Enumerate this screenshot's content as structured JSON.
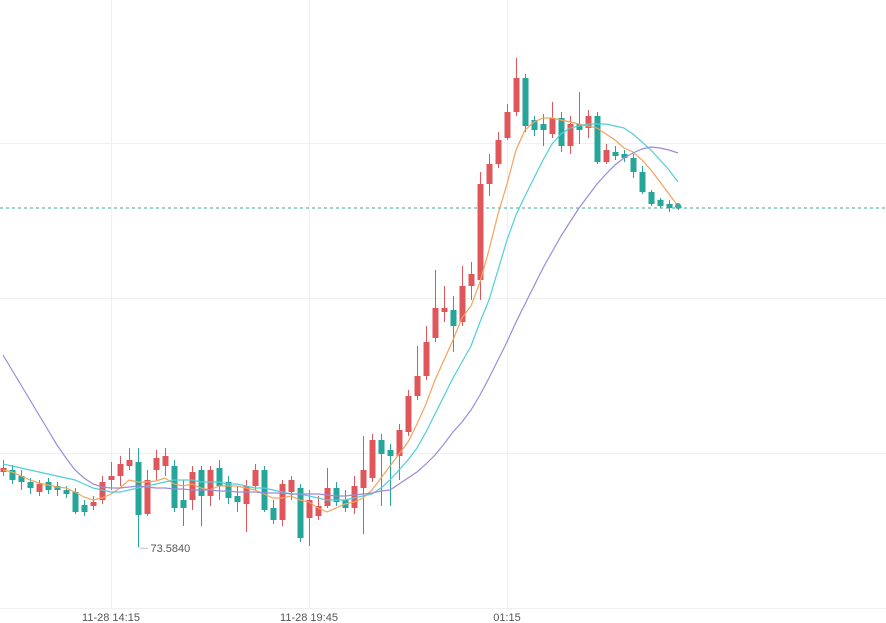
{
  "chart_data": {
    "type": "candlestick",
    "categories": [
      null,
      null,
      null,
      null,
      null,
      null,
      null,
      null,
      null,
      null,
      null,
      null,
      "11-28 14:15",
      null,
      null,
      null,
      null,
      null,
      null,
      null,
      null,
      null,
      null,
      null,
      null,
      null,
      null,
      null,
      null,
      null,
      null,
      null,
      null,
      null,
      "11-28 19:45",
      null,
      null,
      null,
      null,
      null,
      null,
      null,
      null,
      null,
      null,
      null,
      null,
      null,
      null,
      null,
      null,
      null,
      null,
      null,
      null,
      null,
      "01:15",
      null,
      null,
      null,
      null,
      null,
      null,
      null,
      null,
      null,
      null,
      null,
      null,
      null,
      null,
      null,
      null,
      null,
      null,
      null
    ],
    "open": [
      73.772,
      73.777,
      73.762,
      73.747,
      73.722,
      73.747,
      73.737,
      73.727,
      73.722,
      73.6895,
      73.687,
      73.702,
      73.752,
      73.762,
      73.787,
      73.797,
      73.667,
      73.777,
      73.787,
      73.787,
      73.702,
      73.702,
      73.777,
      73.712,
      73.782,
      73.747,
      73.712,
      73.692,
      73.737,
      73.777,
      73.682,
      73.652,
      73.722,
      73.732,
      73.657,
      73.662,
      73.687,
      73.732,
      73.702,
      73.682,
      73.732,
      73.757,
      73.852,
      73.827,
      73.812,
      73.872,
      73.962,
      74.012,
      74.107,
      74.172,
      74.177,
      74.147,
      74.237,
      74.252,
      74.492,
      74.542,
      74.607,
      74.672,
      74.757,
      74.652,
      74.642,
      74.617,
      74.657,
      74.587,
      74.642,
      74.632,
      74.662,
      74.547,
      74.572,
      74.567,
      74.557,
      74.522,
      74.472,
      74.452,
      74.442,
      74.437
    ],
    "high": [
      73.802,
      73.7895,
      73.777,
      73.757,
      73.752,
      73.757,
      73.747,
      73.737,
      73.732,
      73.702,
      73.712,
      73.762,
      73.797,
      73.812,
      73.832,
      73.832,
      73.777,
      73.827,
      73.832,
      73.802,
      73.752,
      73.787,
      73.787,
      73.787,
      73.802,
      73.762,
      73.737,
      73.752,
      73.792,
      73.787,
      73.702,
      73.752,
      73.762,
      73.742,
      73.727,
      73.712,
      73.782,
      73.747,
      73.727,
      73.762,
      73.862,
      73.867,
      73.867,
      73.842,
      73.892,
      73.977,
      74.087,
      74.137,
      74.277,
      74.237,
      74.212,
      74.287,
      74.297,
      74.522,
      74.567,
      74.622,
      74.692,
      74.807,
      74.767,
      74.662,
      74.667,
      74.697,
      74.672,
      74.662,
      74.722,
      74.677,
      74.672,
      74.592,
      74.587,
      74.577,
      74.567,
      74.537,
      74.477,
      74.457,
      74.452,
      74.442
    ],
    "low": [
      73.762,
      73.742,
      73.727,
      73.717,
      73.712,
      73.717,
      73.712,
      73.707,
      73.667,
      73.662,
      73.677,
      73.692,
      73.727,
      73.737,
      73.777,
      73.584,
      73.662,
      73.752,
      73.762,
      73.672,
      73.637,
      73.677,
      73.637,
      73.687,
      73.702,
      73.692,
      73.672,
      73.622,
      73.727,
      73.672,
      73.642,
      73.637,
      73.702,
      73.597,
      73.587,
      73.652,
      73.682,
      73.687,
      73.672,
      73.667,
      73.617,
      73.747,
      73.687,
      73.687,
      73.752,
      73.862,
      73.952,
      74.002,
      74.097,
      74.147,
      74.072,
      74.137,
      74.202,
      74.202,
      74.462,
      74.532,
      74.602,
      74.662,
      74.622,
      74.612,
      74.587,
      74.607,
      74.572,
      74.567,
      74.592,
      74.607,
      74.542,
      74.542,
      74.552,
      74.547,
      74.507,
      74.467,
      74.437,
      74.432,
      74.422,
      74.427
    ],
    "close": [
      73.782,
      73.752,
      73.747,
      73.732,
      73.742,
      73.727,
      73.727,
      73.717,
      73.672,
      73.672,
      73.697,
      73.747,
      73.762,
      73.792,
      73.802,
      73.6645,
      73.752,
      73.807,
      73.812,
      73.682,
      73.682,
      73.772,
      73.712,
      73.777,
      73.737,
      73.707,
      73.697,
      73.737,
      73.777,
      73.677,
      73.652,
      73.742,
      73.752,
      73.607,
      73.702,
      73.687,
      73.732,
      73.697,
      73.682,
      73.737,
      73.777,
      73.852,
      73.817,
      73.812,
      73.877,
      73.962,
      74.012,
      74.097,
      74.182,
      74.182,
      74.137,
      74.237,
      74.267,
      74.492,
      74.542,
      74.602,
      74.672,
      74.757,
      74.637,
      74.627,
      74.627,
      74.657,
      74.587,
      74.642,
      74.627,
      74.662,
      74.547,
      74.577,
      74.562,
      74.557,
      74.522,
      74.472,
      74.442,
      74.437,
      74.432,
      74.432
    ],
    "low_value_labels": [
      null,
      null,
      null,
      null,
      null,
      null,
      null,
      null,
      null,
      null,
      null,
      null,
      null,
      null,
      null,
      "73.5840",
      null,
      null,
      null,
      null,
      null,
      null,
      null,
      null,
      null,
      null,
      null,
      null,
      null,
      null,
      null,
      null,
      null,
      null,
      null,
      null,
      null,
      null,
      null,
      null,
      null,
      null,
      null,
      null,
      null,
      null,
      null,
      null,
      null,
      null,
      null,
      null,
      null,
      null,
      null,
      null,
      null,
      null,
      null,
      null,
      null,
      null,
      null,
      null,
      null,
      null,
      null,
      null,
      null,
      null,
      null,
      null,
      null,
      null,
      null,
      null
    ],
    "up_color": "#e0575b",
    "down_color": "#26a69a",
    "lines": [
      {
        "color": "#f5a25d",
        "values": [
          73.777,
          73.772,
          73.762,
          73.752,
          73.7445,
          73.7395,
          73.7345,
          73.732,
          73.722,
          73.7095,
          73.702,
          73.707,
          73.717,
          73.732,
          73.752,
          73.747,
          73.747,
          73.7495,
          73.757,
          73.742,
          73.737,
          73.742,
          73.732,
          73.727,
          73.737,
          73.737,
          73.737,
          73.732,
          73.727,
          73.717,
          73.707,
          73.707,
          73.712,
          73.702,
          73.697,
          73.682,
          73.672,
          73.682,
          73.692,
          73.697,
          73.707,
          73.727,
          73.757,
          73.787,
          73.817,
          73.847,
          73.892,
          73.942,
          74.002,
          74.052,
          74.102,
          74.157,
          74.187,
          74.247,
          74.327,
          74.417,
          74.492,
          74.577,
          74.627,
          74.647,
          74.657,
          74.657,
          74.652,
          74.647,
          74.642,
          74.637,
          74.632,
          74.617,
          74.602,
          74.582,
          74.572,
          74.552,
          74.527,
          74.497,
          74.467,
          74.437
        ]
      },
      {
        "color": "#4fcfd8",
        "values": [
          73.792,
          73.787,
          73.782,
          73.777,
          73.772,
          73.767,
          73.762,
          73.757,
          73.752,
          73.742,
          73.732,
          73.727,
          73.722,
          73.722,
          73.727,
          73.732,
          73.737,
          73.742,
          73.747,
          73.752,
          73.752,
          73.752,
          73.747,
          73.747,
          73.747,
          73.742,
          73.742,
          73.737,
          73.732,
          73.732,
          73.727,
          73.722,
          73.717,
          73.717,
          73.712,
          73.707,
          73.702,
          73.702,
          73.702,
          73.707,
          73.712,
          73.717,
          73.732,
          73.752,
          73.777,
          73.802,
          73.832,
          73.872,
          73.917,
          73.962,
          74.007,
          74.047,
          74.087,
          74.147,
          74.202,
          74.277,
          74.352,
          74.4145,
          74.462,
          74.507,
          74.552,
          74.592,
          74.617,
          74.632,
          74.637,
          74.642,
          74.642,
          74.642,
          74.637,
          74.632,
          74.617,
          74.597,
          74.577,
          74.552,
          74.527,
          74.497
        ]
      },
      {
        "color": "#9d8adb",
        "values": [
          74.0645,
          74.027,
          73.9895,
          73.952,
          73.9145,
          73.877,
          73.8395,
          73.807,
          73.777,
          73.757,
          73.742,
          73.7345,
          73.732,
          73.732,
          73.7345,
          73.737,
          73.7345,
          73.732,
          73.732,
          73.7295,
          73.7295,
          73.727,
          73.727,
          73.727,
          73.7245,
          73.7245,
          73.722,
          73.722,
          73.722,
          73.7195,
          73.7195,
          73.7195,
          73.717,
          73.717,
          73.717,
          73.717,
          73.7145,
          73.712,
          73.712,
          73.7145,
          73.717,
          73.7195,
          73.7245,
          73.727,
          73.742,
          73.757,
          73.772,
          73.792,
          73.8145,
          73.842,
          73.872,
          73.897,
          73.927,
          73.9645,
          74.007,
          74.052,
          74.097,
          74.147,
          74.192,
          74.237,
          74.282,
          74.322,
          74.362,
          74.397,
          74.432,
          74.462,
          74.492,
          74.517,
          74.5395,
          74.557,
          74.5695,
          74.5795,
          74.5845,
          74.582,
          74.577,
          74.5695
        ]
      }
    ],
    "last_price": 74.432,
    "last_price_color": "#3aa89a",
    "ylim": [
      73.3945,
      74.952
    ]
  }
}
